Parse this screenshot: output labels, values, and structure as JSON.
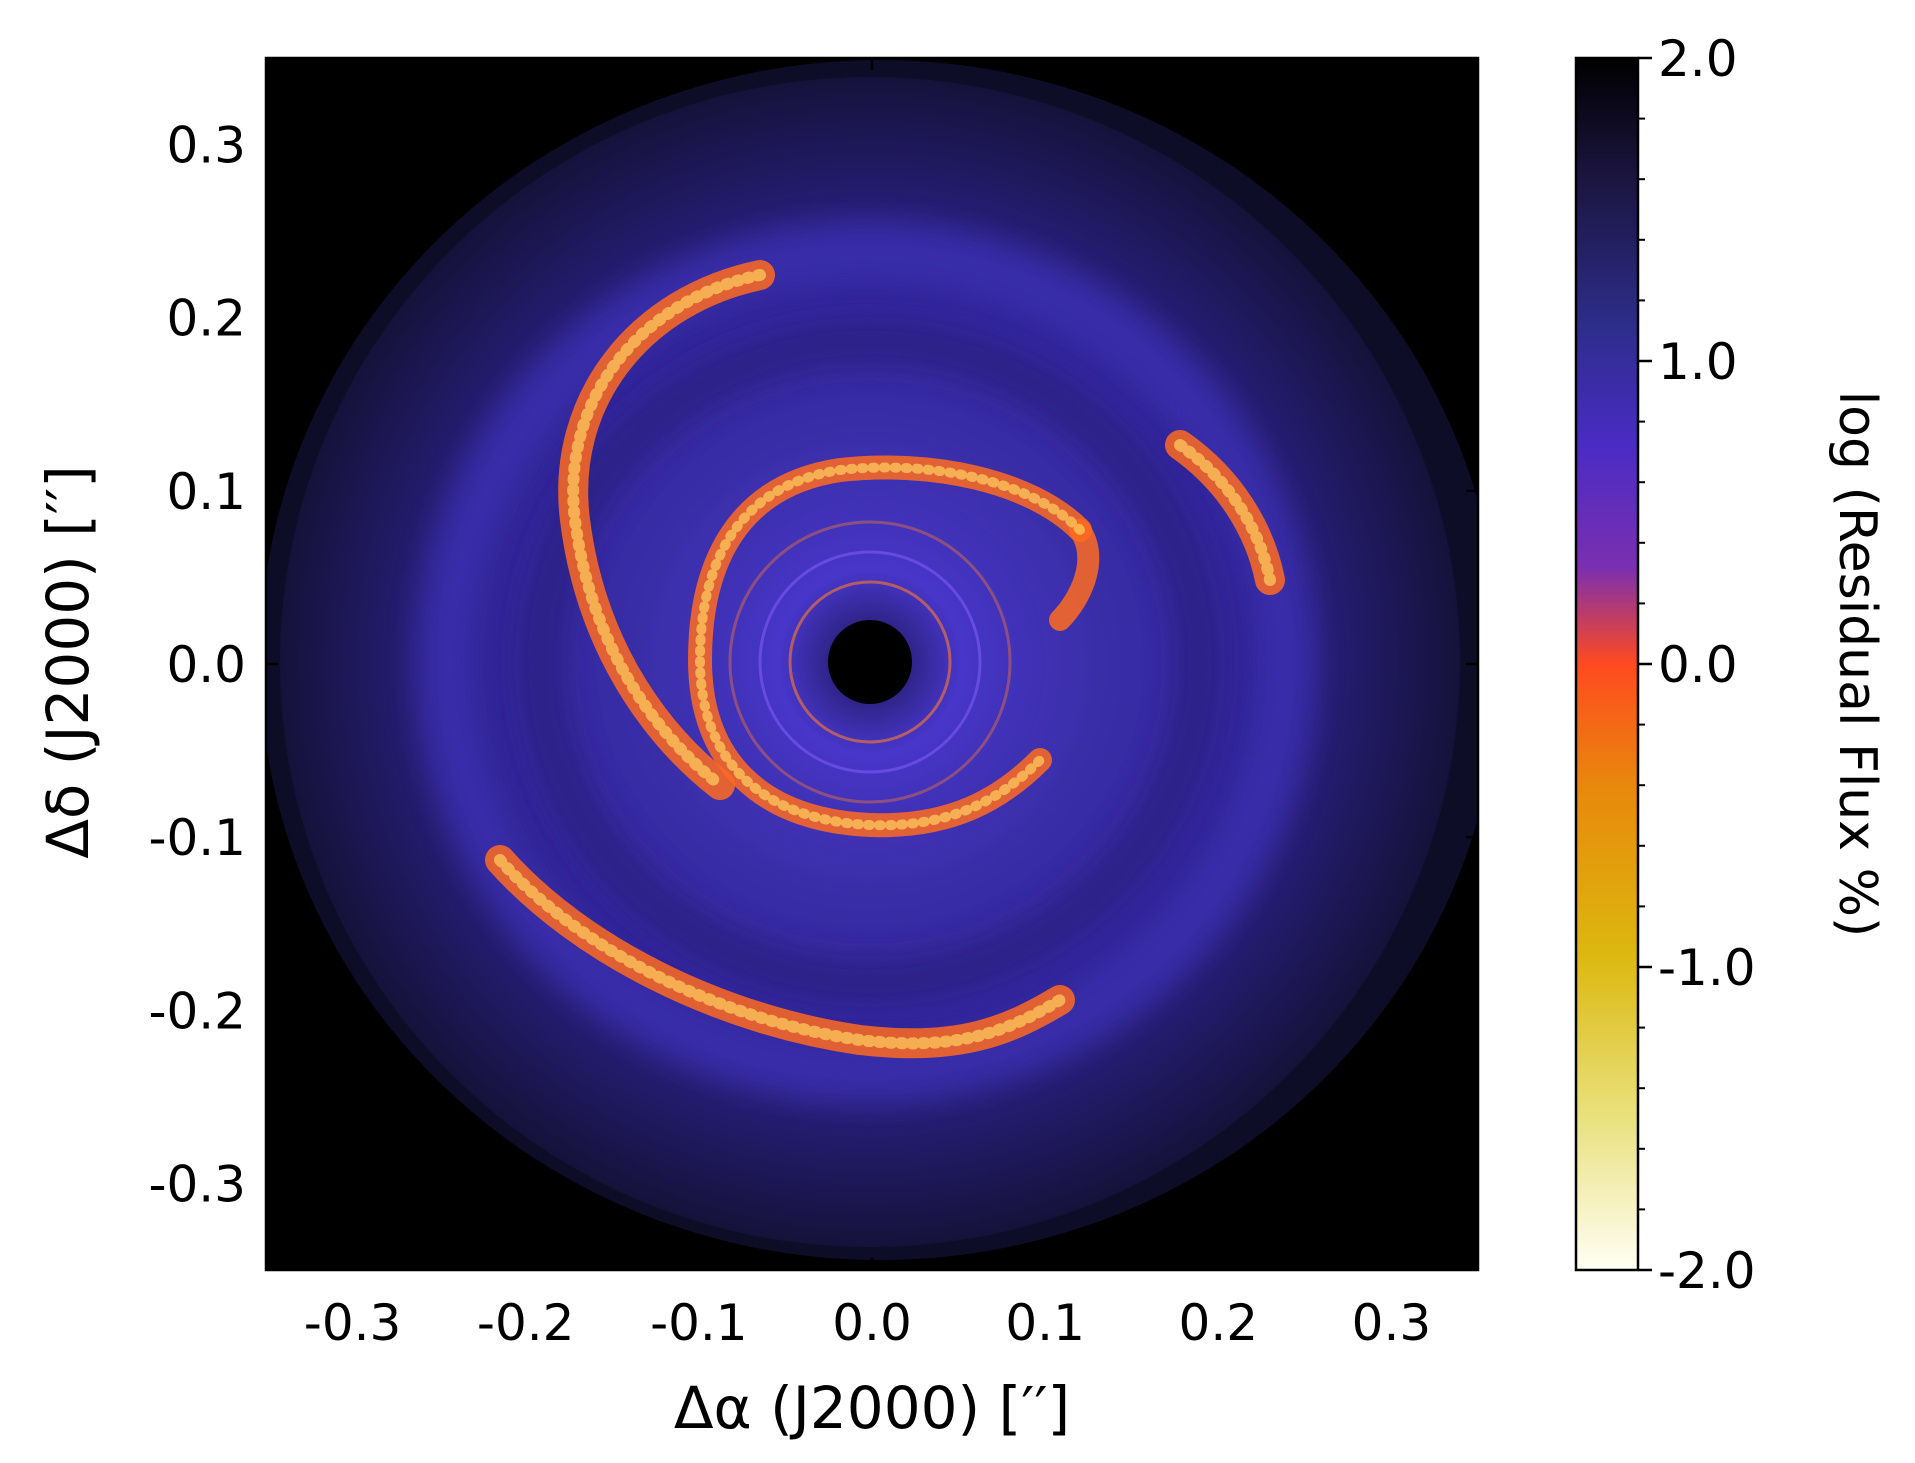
{
  "chart_data": {
    "type": "heatmap",
    "title": "",
    "xlabel": "Δα (J2000) [′′]",
    "ylabel": "Δδ (J2000) [′′]",
    "xlim": [
      -0.35,
      0.35
    ],
    "ylim": [
      -0.35,
      0.35
    ],
    "xticks": [
      {
        "value": -0.3,
        "label": "-0.3"
      },
      {
        "value": -0.2,
        "label": "-0.2"
      },
      {
        "value": -0.1,
        "label": "-0.1"
      },
      {
        "value": 0.0,
        "label": "0.0"
      },
      {
        "value": 0.1,
        "label": "0.1"
      },
      {
        "value": 0.2,
        "label": "0.2"
      },
      {
        "value": 0.3,
        "label": "0.3"
      }
    ],
    "yticks": [
      {
        "value": 0.3,
        "label": "0.3"
      },
      {
        "value": 0.2,
        "label": "0.2"
      },
      {
        "value": 0.1,
        "label": "0.1"
      },
      {
        "value": 0.0,
        "label": "0.0"
      },
      {
        "value": -0.1,
        "label": "-0.1"
      },
      {
        "value": -0.2,
        "label": "-0.2"
      },
      {
        "value": -0.3,
        "label": "-0.3"
      }
    ],
    "colorbar": {
      "label": "log (Residual Flux %)",
      "range": [
        -2.0,
        2.0
      ],
      "ticks": [
        {
          "value": 2.0,
          "label": "2.0"
        },
        {
          "value": 1.0,
          "label": "1.0"
        },
        {
          "value": 0.0,
          "label": "0.0"
        },
        {
          "value": -1.0,
          "label": "-1.0"
        },
        {
          "value": -2.0,
          "label": "-2.0"
        }
      ],
      "colormap": [
        "#000000",
        "#1b1540",
        "#2d2d8a",
        "#4a2cc4",
        "#7a2fb0",
        "#c0304a",
        "#ff4a20",
        "#e8880c",
        "#dcb80f",
        "#e8e07a",
        "#fffff5"
      ]
    },
    "features": {
      "background_color": "#000000",
      "disk_outer_color": "#15123a",
      "disk_inner_color": "#3a2fa6",
      "spiral_color": "#ff6a20",
      "spiral_highlight_color": "#ffd060",
      "coronagraph_mask_color": "#000000"
    }
  }
}
